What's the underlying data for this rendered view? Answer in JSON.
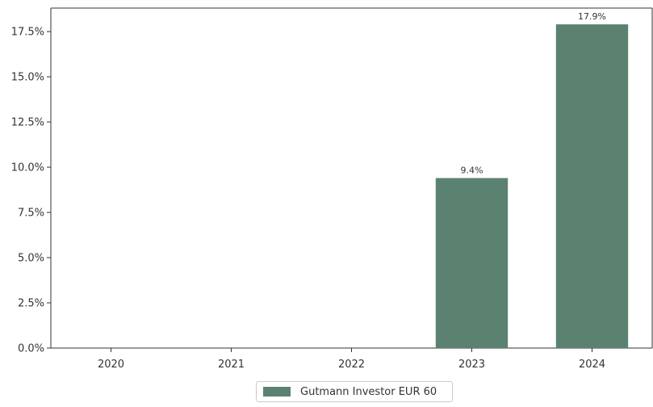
{
  "chart_data": {
    "type": "bar",
    "categories": [
      "2020",
      "2021",
      "2022",
      "2023",
      "2024"
    ],
    "series": [
      {
        "name": "Gutmann Investor EUR 60",
        "values": [
          null,
          null,
          null,
          9.4,
          17.9
        ],
        "color": "#5b8270"
      }
    ],
    "data_labels": [
      "",
      "",
      "",
      "9.4%",
      "17.9%"
    ],
    "yticks": [
      "0.0%",
      "2.5%",
      "5.0%",
      "7.5%",
      "10.0%",
      "12.5%",
      "15.0%",
      "17.5%"
    ],
    "ytick_values": [
      0,
      2.5,
      5,
      7.5,
      10,
      12.5,
      15,
      17.5
    ],
    "ylim": [
      0,
      18.8
    ],
    "legend_position": "bottom-center",
    "grid": false
  }
}
